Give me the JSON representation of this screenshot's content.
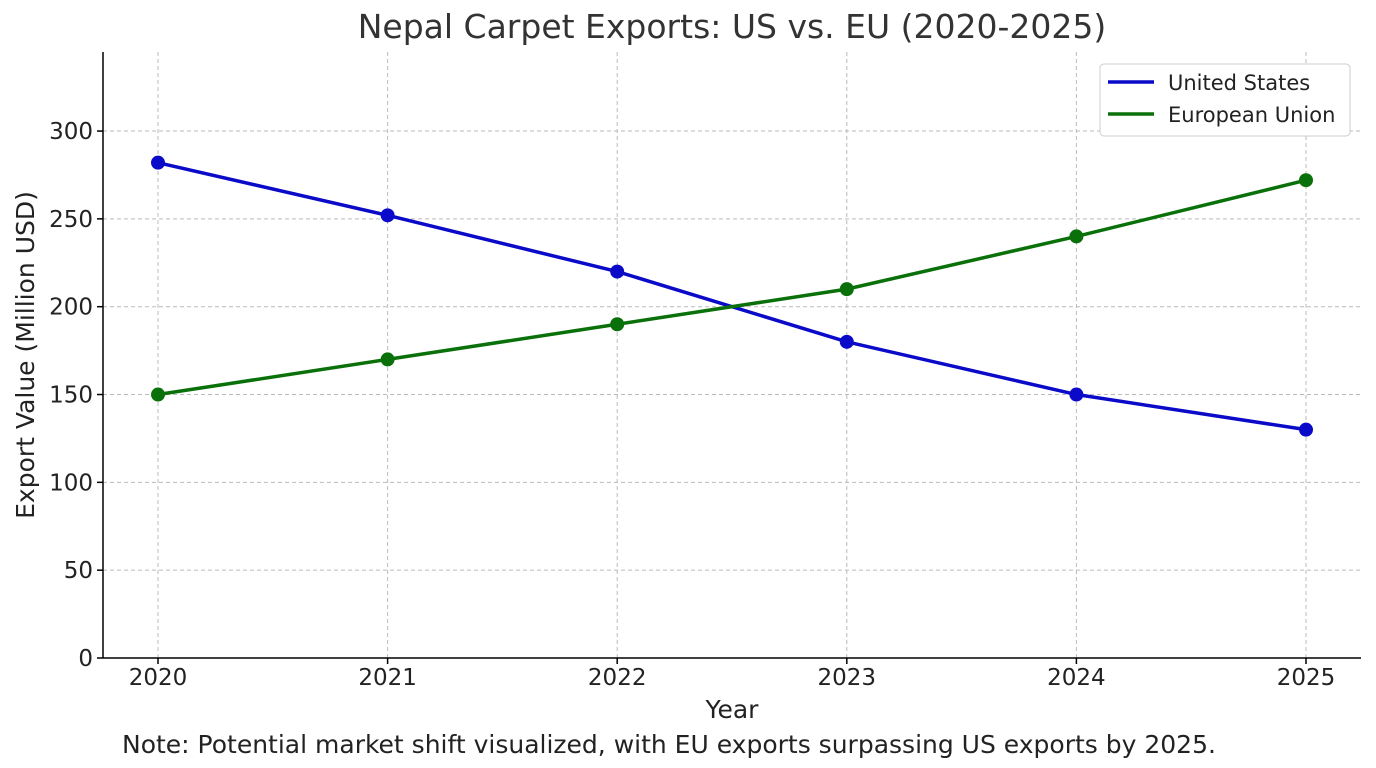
{
  "chart_data": {
    "type": "line",
    "title": "Nepal Carpet Exports: US vs. EU (2020-2025)",
    "xlabel": "Year",
    "ylabel": "Export Value (Million USD)",
    "x": [
      2020,
      2021,
      2022,
      2023,
      2024,
      2025
    ],
    "x_tick_labels": [
      "2020",
      "2021",
      "2022",
      "2023",
      "2024",
      "2025"
    ],
    "y_ticks": [
      0,
      50,
      100,
      150,
      200,
      250,
      300
    ],
    "ylim": [
      0,
      345
    ],
    "grid": true,
    "legend_position": "top-right",
    "series": [
      {
        "name": "United States",
        "color": "#0a0ac8",
        "values": [
          282,
          252,
          220,
          180,
          150,
          130
        ]
      },
      {
        "name": "European Union",
        "color": "#0a700a",
        "values": [
          150,
          170,
          190,
          210,
          240,
          272
        ]
      }
    ],
    "note": "Note: Potential market shift visualized, with EU exports surpassing US exports by 2025."
  }
}
